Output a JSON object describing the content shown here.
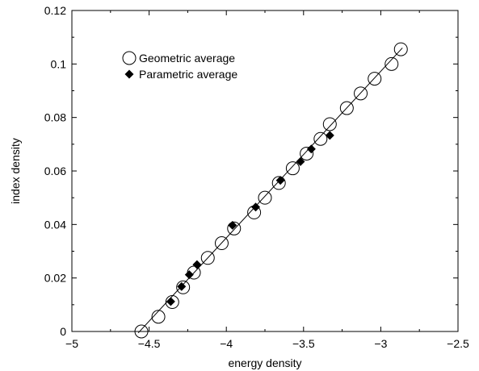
{
  "chart_data": {
    "type": "scatter",
    "title": "",
    "xlabel": "energy density",
    "ylabel": "index density",
    "xlim": [
      -5,
      -2.5
    ],
    "ylim": [
      0,
      0.12
    ],
    "grid": false,
    "legend_position": "top-left",
    "x_ticks": [
      -5,
      -4.5,
      -4,
      -3.5,
      -3,
      -2.5
    ],
    "x_tick_labels": [
      "−5",
      "−4.5",
      "−4",
      "−3.5",
      "−3",
      "−2.5"
    ],
    "y_ticks": [
      0,
      0.02,
      0.04,
      0.06,
      0.08,
      0.1,
      0.12
    ],
    "y_tick_labels": [
      "0",
      "0.02",
      "0.04",
      "0.06",
      "0.08",
      "0.1",
      "0.12"
    ],
    "series": [
      {
        "name": "Geometric average",
        "marker": "open-circle",
        "x": [
          -4.55,
          -4.44,
          -4.35,
          -4.28,
          -4.21,
          -4.12,
          -4.03,
          -3.95,
          -3.82,
          -3.75,
          -3.66,
          -3.57,
          -3.48,
          -3.39,
          -3.33,
          -3.22,
          -3.13,
          -3.04,
          -2.93,
          -2.87
        ],
        "y": [
          0.0,
          0.0055,
          0.011,
          0.0165,
          0.022,
          0.0275,
          0.033,
          0.0385,
          0.0445,
          0.05,
          0.0555,
          0.061,
          0.0665,
          0.072,
          0.0775,
          0.0835,
          0.089,
          0.0945,
          0.1,
          0.1055
        ]
      },
      {
        "name": "Parametric average",
        "marker": "filled-diamond",
        "x": [
          -4.36,
          -4.29,
          -4.24,
          -4.19,
          -3.96,
          -3.81,
          -3.65,
          -3.52,
          -3.45,
          -3.33
        ],
        "y": [
          0.0112,
          0.0168,
          0.0212,
          0.025,
          0.0397,
          0.0465,
          0.0565,
          0.0635,
          0.0682,
          0.0733
        ]
      }
    ],
    "fit_line": {
      "x": [
        -4.57,
        -2.86
      ],
      "y": [
        -0.0005,
        0.106
      ]
    }
  }
}
